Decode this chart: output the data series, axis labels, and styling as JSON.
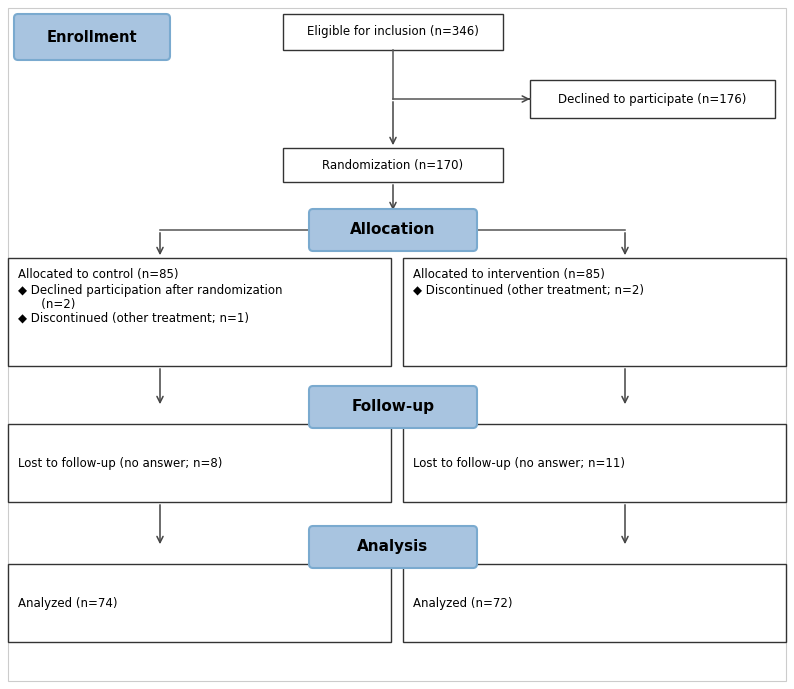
{
  "bg_color": "#ffffff",
  "box_border_color": "#333333",
  "blue_fill": "#a8c4e0",
  "blue_border": "#7aaacf",
  "white_fill": "#ffffff",
  "enrollment_label": "Enrollment",
  "eligible_label": "Eligible for inclusion (n=346)",
  "declined_label": "Declined to participate (n=176)",
  "randomization_label": "Randomization (n=170)",
  "allocation_label": "Allocation",
  "followup_label": "Follow-up",
  "analysis_label": "Analysis",
  "control_line1": "Allocated to control (n=85)",
  "control_line2": "◆ Declined participation after randomization",
  "control_line3": "   (n=2)",
  "control_line4": "◆ Discontinued (other treatment; n=1)",
  "intervention_line1": "Allocated to intervention (n=85)",
  "intervention_line2": "◆ Discontinued (other treatment; n=2)",
  "lost_control_text": "Lost to follow-up (no answer; n=8)",
  "lost_intervention_text": "Lost to follow-up (no answer; n=11)",
  "analyzed_control_text": "Analyzed (n=74)",
  "analyzed_intervention_text": "Analyzed (n=72)",
  "font_size_small": 8.5,
  "font_size_label": 11,
  "font_size_enrollment": 10.5,
  "line_color": "#555555",
  "arrow_color": "#444444"
}
